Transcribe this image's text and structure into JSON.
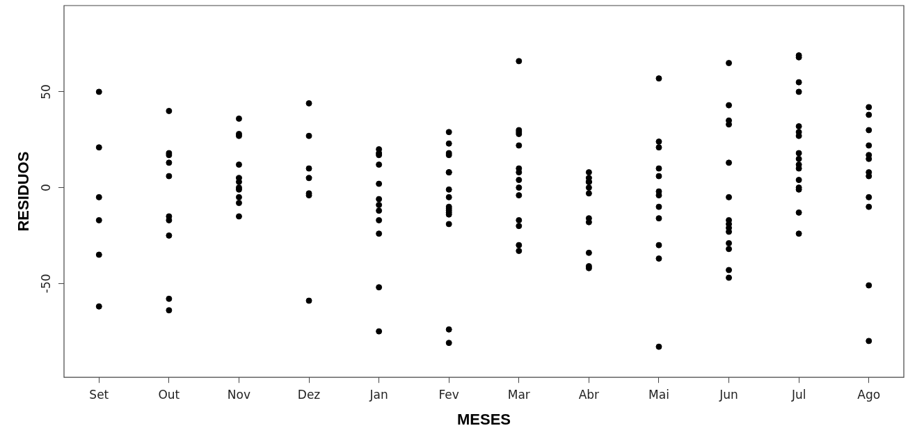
{
  "chart_data": {
    "type": "scatter",
    "xlabel": "MESES",
    "ylabel": "RESIDUOS",
    "categories": [
      "Set",
      "Out",
      "Nov",
      "Dez",
      "Jan",
      "Fev",
      "Mar",
      "Abr",
      "Mai",
      "Jun",
      "Jul",
      "Ago"
    ],
    "ylim": [
      -99,
      95
    ],
    "yticks": [
      -50,
      0,
      50
    ],
    "grid": false,
    "legend": false,
    "marker": "circle",
    "series": [
      {
        "color": "#000000",
        "x": [
          "Set",
          "Set",
          "Set",
          "Set",
          "Set",
          "Set",
          "Out",
          "Out",
          "Out",
          "Out",
          "Out",
          "Out",
          "Out",
          "Out",
          "Out",
          "Out",
          "Nov",
          "Nov",
          "Nov",
          "Nov",
          "Nov",
          "Nov",
          "Nov",
          "Nov",
          "Nov",
          "Nov",
          "Nov",
          "Dez",
          "Dez",
          "Dez",
          "Dez",
          "Dez",
          "Dez",
          "Dez",
          "Jan",
          "Jan",
          "Jan",
          "Jan",
          "Jan",
          "Jan",
          "Jan",
          "Jan",
          "Jan",
          "Jan",
          "Jan",
          "Jan",
          "Fev",
          "Fev",
          "Fev",
          "Fev",
          "Fev",
          "Fev",
          "Fev",
          "Fev",
          "Fev",
          "Fev",
          "Fev",
          "Fev",
          "Fev",
          "Fev",
          "Fev",
          "Fev",
          "Mar",
          "Mar",
          "Mar",
          "Mar",
          "Mar",
          "Mar",
          "Mar",
          "Mar",
          "Mar",
          "Mar",
          "Mar",
          "Mar",
          "Mar",
          "Mar",
          "Abr",
          "Abr",
          "Abr",
          "Abr",
          "Abr",
          "Abr",
          "Abr",
          "Abr",
          "Abr",
          "Abr",
          "Abr",
          "Abr",
          "Mai",
          "Mai",
          "Mai",
          "Mai",
          "Mai",
          "Mai",
          "Mai",
          "Mai",
          "Mai",
          "Mai",
          "Mai",
          "Mai",
          "Jun",
          "Jun",
          "Jun",
          "Jun",
          "Jun",
          "Jun",
          "Jun",
          "Jun",
          "Jun",
          "Jun",
          "Jun",
          "Jun",
          "Jun",
          "Jun",
          "Jul",
          "Jul",
          "Jul",
          "Jul",
          "Jul",
          "Jul",
          "Jul",
          "Jul",
          "Jul",
          "Jul",
          "Jul",
          "Jul",
          "Jul",
          "Jul",
          "Jul",
          "Jul",
          "Ago",
          "Ago",
          "Ago",
          "Ago",
          "Ago",
          "Ago",
          "Ago",
          "Ago",
          "Ago",
          "Ago",
          "Ago",
          "Ago"
        ],
        "values": [
          50,
          21,
          -5,
          -17,
          -35,
          -62,
          40,
          18,
          17,
          13,
          6,
          -15,
          -17,
          -25,
          -58,
          -64,
          36,
          28,
          27,
          12,
          5,
          3,
          0,
          -1,
          -5,
          -8,
          -15,
          44,
          27,
          10,
          5,
          -3,
          -4,
          -59,
          20,
          18,
          17,
          12,
          2,
          -6,
          -9,
          -12,
          -17,
          -24,
          -52,
          -75,
          29,
          23,
          18,
          17,
          8,
          8,
          -1,
          -5,
          -10,
          -11,
          -12,
          -13,
          -14,
          -19,
          -74,
          -81,
          66,
          30,
          29,
          28,
          22,
          10,
          8,
          4,
          0,
          -4,
          -17,
          -20,
          -30,
          -33,
          8,
          5,
          3,
          3,
          3,
          0,
          -3,
          -16,
          -18,
          -34,
          -41,
          -42,
          57,
          24,
          21,
          10,
          6,
          -2,
          -4,
          -10,
          -16,
          -30,
          -37,
          -83,
          65,
          43,
          35,
          33,
          13,
          -5,
          -17,
          -19,
          -21,
          -23,
          -29,
          -32,
          -43,
          -47,
          69,
          68,
          55,
          50,
          32,
          29,
          27,
          18,
          15,
          12,
          10,
          4,
          0,
          -1,
          -13,
          -24,
          42,
          38,
          30,
          22,
          17,
          15,
          8,
          6,
          -5,
          -10,
          -51,
          -80
        ]
      }
    ]
  }
}
